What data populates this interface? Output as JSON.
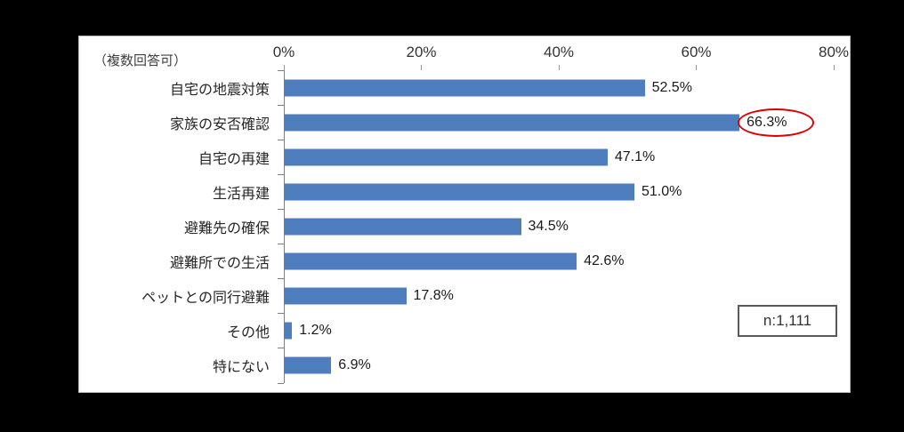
{
  "note": "（複数回答可）",
  "sample_box": "n:1,111",
  "colors": {
    "bar": "#4f7ebf",
    "axis": "#7f7f7f",
    "highlight_circle": "#dd0000",
    "panel_bg": "#ffffff",
    "frame_bg": "#000000"
  },
  "chart_data": {
    "type": "bar",
    "orientation": "horizontal",
    "title": "",
    "xlabel": "",
    "ylabel": "",
    "xlim": [
      0,
      80
    ],
    "grid": false,
    "legend": false,
    "x_ticks": {
      "labels": [
        "0%",
        "20%",
        "40%",
        "60%",
        "80%"
      ],
      "values": [
        0,
        20,
        40,
        60,
        80
      ]
    },
    "categories": [
      "自宅の地震対策",
      "家族の安否確認",
      "自宅の再建",
      "生活再建",
      "避難先の確保",
      "避難所での生活",
      "ペットとの同行避難",
      "その他",
      "特にない"
    ],
    "values": [
      52.5,
      66.3,
      47.1,
      51.0,
      34.5,
      42.6,
      17.8,
      1.2,
      6.9
    ],
    "value_labels": [
      "52.5%",
      "66.3%",
      "47.1%",
      "51.0%",
      "34.5%",
      "42.6%",
      "17.8%",
      "1.2%",
      "6.9%"
    ],
    "highlight_index": 1,
    "annotation": "red ellipse around highest value 66.3%"
  }
}
